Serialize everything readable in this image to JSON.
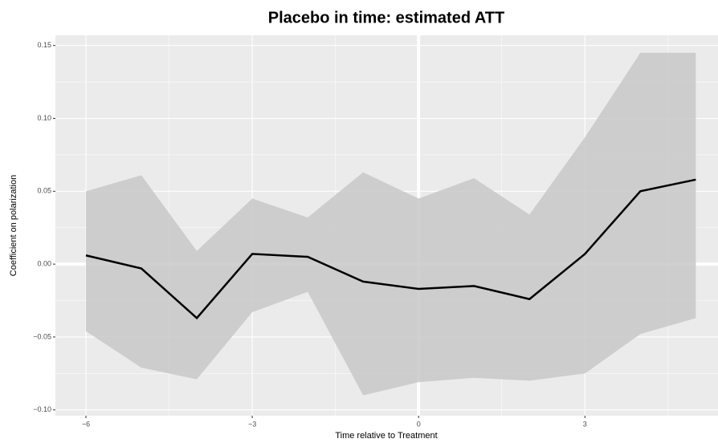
{
  "chart_data": {
    "type": "line",
    "title": "Placebo in time: estimated ATT",
    "x_label": "Time relative to Treatment",
    "y_label": "Coefficient on polarization",
    "x": [
      -6,
      -5,
      -4,
      -3,
      -2,
      -1,
      0,
      1,
      2,
      3,
      4,
      5
    ],
    "values": [
      0.006,
      -0.003,
      -0.037,
      0.007,
      0.005,
      -0.012,
      -0.017,
      -0.015,
      -0.024,
      0.007,
      0.05,
      0.058
    ],
    "lower": [
      -0.046,
      -0.071,
      -0.079,
      -0.033,
      -0.019,
      -0.09,
      -0.081,
      -0.078,
      -0.08,
      -0.075,
      -0.048,
      -0.037
    ],
    "upper": [
      0.05,
      0.061,
      0.009,
      0.045,
      0.032,
      0.063,
      0.045,
      0.059,
      0.034,
      0.087,
      0.145,
      0.145
    ],
    "color": "#000000",
    "band_color": "#c8c8c8",
    "xlim": [
      -6.55,
      5.4
    ],
    "ylim": [
      -0.104,
      0.157
    ],
    "xticks": [
      {
        "value": -6,
        "label": "−6"
      },
      {
        "value": -3,
        "label": "−3"
      },
      0,
      3
    ],
    "yticks": [
      {
        "value": -0.1,
        "label": "−0.10"
      },
      {
        "value": -0.05,
        "label": "−0.05"
      },
      {
        "value": 0,
        "label": "0.00"
      },
      0.05,
      {
        "value": 0.1,
        "label": "0.10"
      },
      0.15
    ],
    "xminor": [
      -4.5,
      -1.5,
      1.5,
      4.5
    ],
    "yminor": [
      -0.075,
      -0.025,
      0.025,
      0.075,
      0.125
    ],
    "vline": 0,
    "hline": 0,
    "grid": true
  }
}
